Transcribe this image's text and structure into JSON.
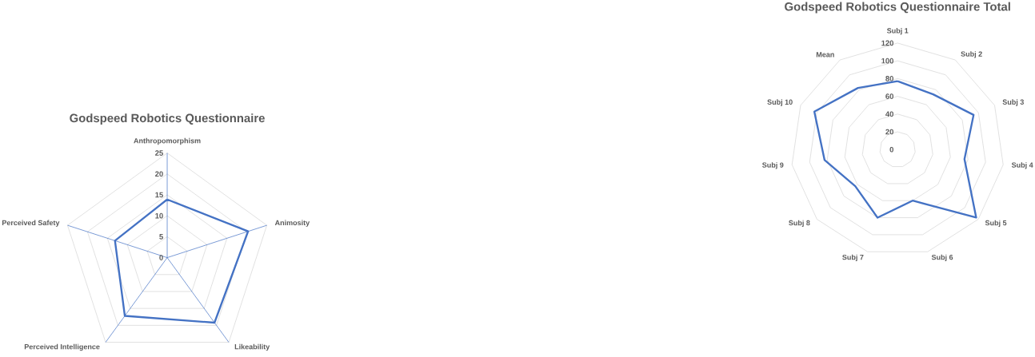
{
  "chart_data": [
    {
      "type": "radar",
      "title": "Godspeed Robotics Questionnaire",
      "categories": [
        "Anthropomorphism",
        "Animosity",
        "Likeability",
        "Perceived Intelligence",
        "Perceived Safety"
      ],
      "series": [
        {
          "color": "#4472c4",
          "values": [
            13.9,
            20.3,
            19.2,
            17.2,
            13.1
          ]
        }
      ],
      "ylim": [
        0,
        25
      ],
      "yticks": [
        0,
        5,
        10,
        15,
        20,
        25
      ],
      "grid": true
    },
    {
      "type": "radar",
      "title": "Godspeed Robotics Questionnaire Total",
      "categories": [
        "Subj 1",
        "Subj 2",
        "Subj 3",
        "Subj 4",
        "Subj 5",
        "Subj 6",
        "Subj 7",
        "Subj 8",
        "Subj 9",
        "Subj 10",
        "Mean"
      ],
      "series": [
        {
          "color": "#4472c4",
          "values": [
            77,
            74,
            94,
            76,
            117,
            60,
            80,
            63,
            83,
            103,
            82.5
          ]
        }
      ],
      "ylim": [
        0,
        120
      ],
      "yticks": [
        0,
        20,
        40,
        60,
        80,
        100,
        120
      ],
      "grid": true
    }
  ]
}
